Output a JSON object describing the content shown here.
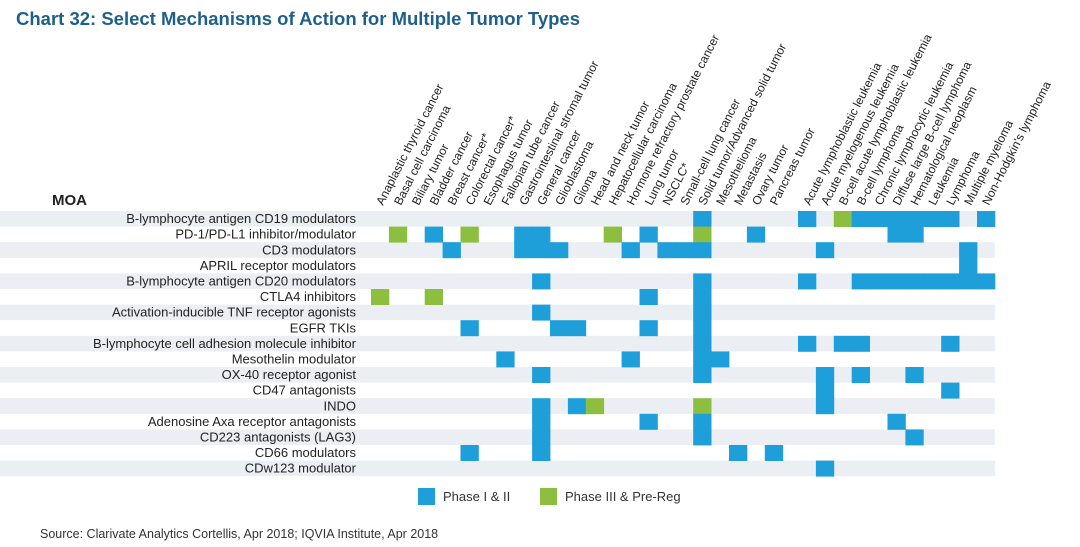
{
  "title": "Chart 32: Select Mechanisms of Action for Multiple Tumor Types",
  "source": "Source: Clarivate Analytics Cortellis, Apr 2018; IQVIA Institute, Apr 2018",
  "colors": {
    "phase12": "#1e9fd9",
    "phase3": "#8cbe3f",
    "band": "#ebeef2",
    "title": "#1f5f8b"
  },
  "chart_data": {
    "type": "heatmap",
    "title": "Chart 32: Select Mechanisms of Action for Multiple Tumor Types",
    "row_header": "MOA",
    "columns": [
      "Anaplastic thyroid cancer",
      "Basal cell carcinoma",
      "Biliary tumor",
      "Bladder cancer",
      "Breast cancer*",
      "Colorectal cancer*",
      "Esophagus tumor",
      "Fallopian tube cancer",
      "Gastrointestinal stromal tumor",
      "General cancer",
      "Glioblastoma",
      "Glioma",
      "Head and neck tumor",
      "Hepatocellular carcinoma",
      "Hormone refractory prostate cancer",
      "Lung tumor",
      "NSCLC*",
      "Small-cell lung cancer",
      "Solid tumor/Advanced solid tumor",
      "Mesothelioma",
      "Metastasis",
      "Ovary tumor",
      "Pancreas tumor",
      "Acute lymphoblastic leukemia",
      "Acute myelogenous leukemia",
      "B-cell acute lymphoblastic leukemia",
      "B-cell lymphoma",
      "Chronic lymphocytic leukemia",
      "Diffuse large B-cell lymphoma",
      "Hematological neoplasm",
      "Leukemia",
      "Lymphoma",
      "Multiple myeloma",
      "Non-Hodgkin's lymphoma"
    ],
    "rows": [
      "B-lymphocyte antigen CD19 modulators",
      "PD-1/PD-L1 inhibitor/modulator",
      "CD3 modulators",
      "APRIL receptor modulators",
      "B-lymphocyte antigen CD20 modulators",
      "CTLA4 inhibitors",
      "Activation-inducible TNF receptor agonists",
      "EGFR TKIs",
      "B-lymphocyte cell adhesion molecule inhibitor",
      "Mesothelin modulator",
      "OX-40 receptor agonist",
      "CD47 antagonists",
      "INDO",
      "Adenosine Axa receptor antagonists",
      "CD223 antagonists (LAG3)",
      "CD66 modulators",
      "CDw123 modulator"
    ],
    "legend": [
      {
        "code": 1,
        "label": "Phase I & II"
      },
      {
        "code": 2,
        "label": "Phase III & Pre-Reg"
      }
    ],
    "cells": [
      [
        0,
        0,
        0,
        0,
        0,
        0,
        0,
        0,
        0,
        0,
        0,
        0,
        0,
        0,
        0,
        0,
        0,
        0,
        1,
        0,
        0,
        0,
        0,
        1,
        0,
        2,
        1,
        1,
        1,
        1,
        1,
        1,
        0,
        1
      ],
      [
        0,
        2,
        0,
        1,
        0,
        2,
        0,
        0,
        1,
        1,
        0,
        0,
        0,
        2,
        0,
        1,
        0,
        0,
        2,
        0,
        0,
        1,
        0,
        0,
        0,
        0,
        0,
        0,
        1,
        1,
        0,
        0,
        0,
        0
      ],
      [
        0,
        0,
        0,
        0,
        1,
        0,
        0,
        0,
        1,
        1,
        1,
        0,
        0,
        0,
        1,
        0,
        1,
        1,
        1,
        0,
        0,
        0,
        0,
        0,
        1,
        0,
        0,
        0,
        0,
        0,
        0,
        0,
        1,
        0
      ],
      [
        0,
        0,
        0,
        0,
        0,
        0,
        0,
        0,
        0,
        0,
        0,
        0,
        0,
        0,
        0,
        0,
        0,
        0,
        0,
        0,
        0,
        0,
        0,
        0,
        0,
        0,
        0,
        0,
        0,
        0,
        0,
        0,
        1,
        0
      ],
      [
        0,
        0,
        0,
        0,
        0,
        0,
        0,
        0,
        0,
        1,
        0,
        0,
        0,
        0,
        0,
        0,
        0,
        0,
        1,
        0,
        0,
        0,
        0,
        1,
        0,
        0,
        1,
        1,
        1,
        1,
        1,
        1,
        1,
        1
      ],
      [
        2,
        0,
        0,
        2,
        0,
        0,
        0,
        0,
        0,
        0,
        0,
        0,
        0,
        0,
        0,
        1,
        0,
        0,
        1,
        0,
        0,
        0,
        0,
        0,
        0,
        0,
        0,
        0,
        0,
        0,
        0,
        0,
        0,
        0
      ],
      [
        0,
        0,
        0,
        0,
        0,
        0,
        0,
        0,
        0,
        1,
        0,
        0,
        0,
        0,
        0,
        0,
        0,
        0,
        1,
        0,
        0,
        0,
        0,
        0,
        0,
        0,
        0,
        0,
        0,
        0,
        0,
        0,
        0,
        0
      ],
      [
        0,
        0,
        0,
        0,
        0,
        1,
        0,
        0,
        0,
        0,
        1,
        1,
        0,
        0,
        0,
        1,
        0,
        0,
        1,
        0,
        0,
        0,
        0,
        0,
        0,
        0,
        0,
        0,
        0,
        0,
        0,
        0,
        0,
        0
      ],
      [
        0,
        0,
        0,
        0,
        0,
        0,
        0,
        0,
        0,
        0,
        0,
        0,
        0,
        0,
        0,
        0,
        0,
        0,
        1,
        0,
        0,
        0,
        0,
        1,
        0,
        1,
        1,
        0,
        0,
        0,
        0,
        1,
        0,
        0
      ],
      [
        0,
        0,
        0,
        0,
        0,
        0,
        0,
        1,
        0,
        0,
        0,
        0,
        0,
        0,
        1,
        0,
        0,
        0,
        1,
        1,
        0,
        0,
        0,
        0,
        0,
        0,
        0,
        0,
        0,
        0,
        0,
        0,
        0,
        0
      ],
      [
        0,
        0,
        0,
        0,
        0,
        0,
        0,
        0,
        0,
        1,
        0,
        0,
        0,
        0,
        0,
        0,
        0,
        0,
        1,
        0,
        0,
        0,
        0,
        0,
        1,
        0,
        1,
        0,
        0,
        1,
        0,
        0,
        0,
        0
      ],
      [
        0,
        0,
        0,
        0,
        0,
        0,
        0,
        0,
        0,
        0,
        0,
        0,
        0,
        0,
        0,
        0,
        0,
        0,
        0,
        0,
        0,
        0,
        0,
        0,
        1,
        0,
        0,
        0,
        0,
        0,
        0,
        1,
        0,
        0
      ],
      [
        0,
        0,
        0,
        0,
        0,
        0,
        0,
        0,
        0,
        1,
        0,
        1,
        2,
        0,
        0,
        0,
        0,
        0,
        2,
        0,
        0,
        0,
        0,
        0,
        1,
        0,
        0,
        0,
        0,
        0,
        0,
        0,
        0,
        0
      ],
      [
        0,
        0,
        0,
        0,
        0,
        0,
        0,
        0,
        0,
        1,
        0,
        0,
        0,
        0,
        0,
        1,
        0,
        0,
        1,
        0,
        0,
        0,
        0,
        0,
        0,
        0,
        0,
        0,
        1,
        0,
        0,
        0,
        0,
        0
      ],
      [
        0,
        0,
        0,
        0,
        0,
        0,
        0,
        0,
        0,
        1,
        0,
        0,
        0,
        0,
        0,
        0,
        0,
        0,
        1,
        0,
        0,
        0,
        0,
        0,
        0,
        0,
        0,
        0,
        0,
        1,
        0,
        0,
        0,
        0
      ],
      [
        0,
        0,
        0,
        0,
        0,
        1,
        0,
        0,
        0,
        1,
        0,
        0,
        0,
        0,
        0,
        0,
        0,
        0,
        0,
        0,
        1,
        0,
        1,
        0,
        0,
        0,
        0,
        0,
        0,
        0,
        0,
        0,
        0,
        0
      ],
      [
        0,
        0,
        0,
        0,
        0,
        0,
        0,
        0,
        0,
        0,
        0,
        0,
        0,
        0,
        0,
        0,
        0,
        0,
        0,
        0,
        0,
        0,
        0,
        0,
        1,
        0,
        0,
        0,
        0,
        0,
        0,
        0,
        0,
        0
      ]
    ]
  }
}
